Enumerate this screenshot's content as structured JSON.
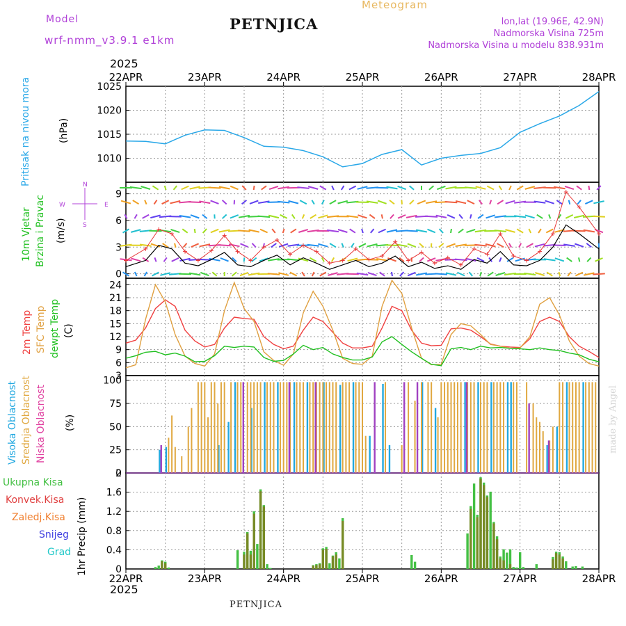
{
  "header": {
    "model_label": "Model",
    "model_run": "wrf-nmm_v3.9.1 e1km",
    "station": "PETNJICA",
    "title": "Meteogram",
    "lonlat": "lon,lat (19.96E, 42.9N)",
    "elevation": "Nadmorska Visina 725m",
    "model_elevation": "Nadmorska Visina u modelu 838.931m"
  },
  "axis": {
    "year": "2025",
    "dates": [
      "22APR",
      "23APR",
      "24APR",
      "25APR",
      "26APR",
      "27APR",
      "28APR"
    ]
  },
  "footer": "PETNJICA",
  "credit": "made by Angel",
  "colors": {
    "pressure": "#2aa8e8",
    "wind_speed": "#000000",
    "gust": "#e83838",
    "t2m": "#f04040",
    "tsfc": "#e0a040",
    "dewpoint": "#20c020",
    "cloud_high": "#22a8e0",
    "cloud_mid": "#e0a840",
    "cloud_low": "#a040c0",
    "precip_total": "#44c044",
    "precip_conv": "#e04040",
    "precip_frozen": "#f08030",
    "precip_snow": "#4040e0",
    "precip_hail": "#20c8c8"
  },
  "panel_labels": {
    "pressure": [
      "Pritisak na nivou mora",
      "(hPa)"
    ],
    "wind": [
      "10m Vjetar",
      "Brzina i Pravac",
      "(m/s)"
    ],
    "compass": [
      "N",
      "S",
      "W",
      "E"
    ],
    "temp": [
      "2m Temp",
      "SFC Temp",
      "dewpt Temp",
      "(C)"
    ],
    "cloud": [
      "Visoka Oblacnost",
      "Srednja Oblacnost",
      "Niska Oblacnost",
      "(%)"
    ],
    "precip_legend": [
      "Ukupna Kisa",
      "Konvek.Kisa",
      "Zaledj.Kisa",
      "Snijeg",
      "Grad"
    ],
    "precip_axis": "1hr Precip (mm)"
  },
  "chart_data": [
    {
      "type": "line",
      "name": "pressure",
      "x_unit": "hours since 22APR 00",
      "x": [
        0,
        6,
        12,
        18,
        24,
        30,
        36,
        42,
        48,
        54,
        60,
        66,
        72,
        78,
        84,
        90,
        96,
        102,
        108,
        114,
        120,
        126,
        132,
        138,
        144
      ],
      "values": [
        1013.6,
        1013.5,
        1013.0,
        1014.8,
        1015.9,
        1015.8,
        1014.3,
        1012.5,
        1012.3,
        1011.6,
        1010.3,
        1008.2,
        1008.9,
        1010.8,
        1011.8,
        1008.6,
        1010.0,
        1010.6,
        1011.0,
        1012.2,
        1015.4,
        1017.2,
        1018.8,
        1021.0,
        1023.9
      ],
      "ylim": [
        1005,
        1025
      ],
      "yticks": [
        1010,
        1015,
        1020,
        1025
      ]
    },
    {
      "type": "line",
      "name": "wind",
      "x_unit": "hours since 22APR 00",
      "speed_x": [
        0,
        6,
        10,
        14,
        18,
        22,
        26,
        30,
        34,
        38,
        42,
        46,
        50,
        54,
        58,
        62,
        66,
        70,
        74,
        78,
        82,
        86,
        90,
        94,
        98,
        102,
        106,
        110,
        114,
        118,
        122,
        126,
        130,
        134,
        138,
        144
      ],
      "speed": [
        0.8,
        1.5,
        3.2,
        2.8,
        1.2,
        0.9,
        1.6,
        2.4,
        1.0,
        0.8,
        1.5,
        2.1,
        1.0,
        1.8,
        1.2,
        0.5,
        1.0,
        1.5,
        0.8,
        1.2,
        2.0,
        0.8,
        1.3,
        0.6,
        0.9,
        0.5,
        1.6,
        1.2,
        2.5,
        1.0,
        0.9,
        1.5,
        3.0,
        5.5,
        4.5,
        2.8
      ],
      "gust": [
        1.5,
        2.8,
        5.0,
        4.5,
        2.5,
        1.5,
        2.6,
        4.3,
        2.5,
        1.5,
        3.0,
        3.8,
        2.2,
        3.2,
        2.5,
        1.2,
        1.5,
        2.8,
        1.6,
        2.0,
        3.6,
        1.5,
        2.4,
        1.2,
        1.8,
        1.0,
        2.8,
        2.2,
        4.5,
        2.0,
        1.5,
        2.5,
        4.5,
        9.2,
        7.5,
        4.5
      ],
      "ylim": [
        -0.5,
        10.3
      ],
      "yticks": [
        0,
        3,
        6,
        9
      ]
    },
    {
      "type": "line",
      "name": "temperature",
      "x_unit": "hours since 22APR 00",
      "x": [
        0,
        3,
        6,
        9,
        12,
        15,
        18,
        21,
        24,
        27,
        30,
        33,
        36,
        39,
        42,
        45,
        48,
        51,
        54,
        57,
        60,
        63,
        66,
        69,
        72,
        75,
        78,
        81,
        84,
        87,
        90,
        93,
        96,
        99,
        102,
        105,
        108,
        111,
        114,
        117,
        120,
        123,
        126,
        129,
        132,
        135,
        138,
        141,
        144
      ],
      "series": [
        {
          "name": "2m Temp",
          "values": [
            10.5,
            11.2,
            14.0,
            18.5,
            20.5,
            19.0,
            13.5,
            11.0,
            9.6,
            10.2,
            14.0,
            16.5,
            16.2,
            16.0,
            12.0,
            10.2,
            9.2,
            9.8,
            13.5,
            16.5,
            15.5,
            13.0,
            10.5,
            9.4,
            9.4,
            9.8,
            14.0,
            19.0,
            18.0,
            13.5,
            10.5,
            9.9,
            10.0,
            13.8,
            14.0,
            13.5,
            12.0,
            10.3,
            9.8,
            9.6,
            9.5,
            11.5,
            15.5,
            16.5,
            15.5,
            12.0,
            9.8,
            8.6,
            7.2
          ]
        },
        {
          "name": "SFC Temp",
          "values": [
            4.8,
            5.5,
            16.0,
            24.0,
            20.0,
            12.5,
            7.5,
            5.8,
            5.2,
            8.0,
            18.0,
            24.5,
            18.5,
            15.5,
            8.5,
            6.5,
            5.4,
            8.0,
            17.5,
            22.5,
            19.0,
            13.5,
            7.0,
            5.8,
            5.6,
            7.5,
            19.0,
            25.0,
            22.0,
            14.0,
            7.0,
            5.5,
            5.6,
            12.5,
            15.0,
            14.5,
            12.5,
            10.2,
            9.8,
            9.3,
            9.4,
            12.0,
            19.5,
            21.0,
            17.0,
            11.0,
            7.5,
            5.8,
            5.2
          ]
        },
        {
          "name": "dewpt Temp",
          "values": [
            7.0,
            7.6,
            8.4,
            8.6,
            7.8,
            8.2,
            7.5,
            6.2,
            6.3,
            7.6,
            9.8,
            9.5,
            9.8,
            9.6,
            7.2,
            6.3,
            6.5,
            8.0,
            10.0,
            9.0,
            9.5,
            8.0,
            7.2,
            6.6,
            6.6,
            7.3,
            10.8,
            12.0,
            10.2,
            8.5,
            7.0,
            5.6,
            5.3,
            9.2,
            9.5,
            9.0,
            9.8,
            9.4,
            9.5,
            9.3,
            9.2,
            9.0,
            9.4,
            9.0,
            8.8,
            8.2,
            7.8,
            6.8,
            6.2
          ]
        }
      ],
      "ylim": [
        3,
        25.5
      ],
      "yticks": [
        3,
        6,
        9,
        12,
        15,
        18,
        21,
        24
      ]
    },
    {
      "type": "bar",
      "name": "cloud cover",
      "x_unit": "hours since 22APR 00",
      "series": [
        {
          "name": "Visoka Oblacnost",
          "x": [
            10,
            12,
            28,
            31,
            33,
            38,
            42,
            46,
            51,
            55,
            60,
            65,
            69,
            74,
            78,
            80,
            90,
            94,
            103,
            107,
            111,
            116,
            117,
            128,
            131,
            134,
            139
          ],
          "values": [
            25,
            28,
            30,
            55,
            98,
            70,
            98,
            98,
            98,
            98,
            98,
            95,
            98,
            40,
            96,
            30,
            98,
            70,
            98,
            98,
            98,
            98,
            98,
            30,
            50,
            98,
            98
          ]
        },
        {
          "name": "Srednja Oblacnost",
          "x": [
            13,
            14,
            15,
            17,
            19,
            20,
            22,
            23,
            24,
            25,
            26,
            27,
            28,
            29,
            30,
            32,
            34,
            35,
            37,
            38,
            39,
            40,
            41,
            43,
            44,
            45,
            47,
            48,
            49,
            50,
            52,
            53,
            54,
            56,
            57,
            58,
            59,
            60,
            61,
            62,
            63,
            64,
            66,
            67,
            68,
            70,
            71,
            72,
            73,
            79,
            84,
            86,
            88,
            90,
            92,
            93,
            95,
            96,
            97,
            98,
            99,
            100,
            101,
            102,
            104,
            105,
            106,
            108,
            109,
            110,
            112,
            113,
            114,
            115,
            118,
            119,
            122,
            124,
            125,
            126,
            127,
            129,
            130,
            132,
            133,
            135,
            136,
            137,
            138,
            140,
            141,
            142,
            143
          ],
          "values": [
            38,
            62,
            28,
            18,
            50,
            70,
            98,
            98,
            98,
            60,
            98,
            98,
            75,
            98,
            98,
            98,
            98,
            98,
            98,
            98,
            98,
            98,
            98,
            98,
            98,
            98,
            98,
            98,
            98,
            98,
            98,
            98,
            98,
            98,
            98,
            98,
            98,
            98,
            98,
            98,
            98,
            98,
            98,
            98,
            98,
            98,
            98,
            98,
            40,
            98,
            30,
            98,
            78,
            98,
            98,
            98,
            60,
            98,
            98,
            98,
            98,
            98,
            98,
            98,
            98,
            98,
            98,
            98,
            98,
            98,
            98,
            98,
            98,
            98,
            98,
            98,
            98,
            75,
            60,
            55,
            45,
            35,
            50,
            98,
            98,
            98,
            98,
            98,
            98,
            98,
            98,
            98,
            98
          ]
        },
        {
          "name": "Niska Oblacnost",
          "x": [
            11,
            36,
            50,
            58,
            76,
            85,
            89,
            104,
            123,
            129
          ],
          "values": [
            30,
            98,
            98,
            98,
            98,
            98,
            98,
            98,
            75,
            35
          ]
        }
      ],
      "ylim": [
        0,
        105
      ],
      "yticks": [
        0,
        25,
        50,
        75,
        100
      ]
    },
    {
      "type": "bar",
      "name": "precipitation",
      "x_unit": "hours since 22APR 00",
      "series": [
        {
          "name": "Ukupna Kisa",
          "x": [
            9,
            10,
            11,
            12,
            13,
            34,
            36,
            37,
            38,
            39,
            40,
            41,
            42,
            43,
            44,
            57,
            58,
            59,
            60,
            61,
            62,
            63,
            64,
            65,
            66,
            87,
            88,
            104,
            105,
            106,
            107,
            108,
            109,
            110,
            111,
            112,
            113,
            114,
            115,
            116,
            117,
            118,
            119,
            120,
            121,
            125,
            130,
            131,
            132,
            133,
            134,
            136,
            137,
            139
          ],
          "values": [
            0.04,
            0.07,
            0.18,
            0.15,
            0.03,
            0.39,
            0.36,
            0.77,
            0.38,
            1.2,
            0.52,
            1.66,
            1.33,
            0.1,
            0.02,
            0.08,
            0.1,
            0.12,
            0.43,
            0.46,
            0.12,
            0.28,
            0.35,
            0.22,
            1.06,
            0.29,
            0.15,
            0.74,
            1.31,
            1.78,
            1.13,
            1.91,
            1.8,
            1.53,
            1.61,
            0.98,
            0.68,
            0.26,
            0.41,
            0.34,
            0.41,
            0.04,
            0.03,
            0.35,
            0.04,
            0.1,
            0.25,
            0.36,
            0.35,
            0.26,
            0.16,
            0.05,
            0.06,
            0.05
          ]
        },
        {
          "name": "Konvek.Kisa",
          "x": [
            11,
            12,
            36,
            37,
            38,
            39,
            41,
            42,
            57,
            58,
            59,
            60,
            61,
            63,
            64,
            66,
            105,
            107,
            108,
            109,
            110,
            112,
            113,
            114,
            115,
            117,
            130,
            131,
            132,
            133
          ],
          "values": [
            0.16,
            0.12,
            0.3,
            0.74,
            0.3,
            1.15,
            1.62,
            1.3,
            0.07,
            0.08,
            0.1,
            0.4,
            0.42,
            0.26,
            0.3,
            1.0,
            1.25,
            1.08,
            1.88,
            1.75,
            1.5,
            0.95,
            0.62,
            0.22,
            0.18,
            0.1,
            0.2,
            0.33,
            0.3,
            0.22
          ]
        }
      ],
      "ylim": [
        0,
        2
      ],
      "yticks": [
        0,
        0.4,
        0.8,
        1.2,
        1.6,
        2
      ]
    }
  ]
}
